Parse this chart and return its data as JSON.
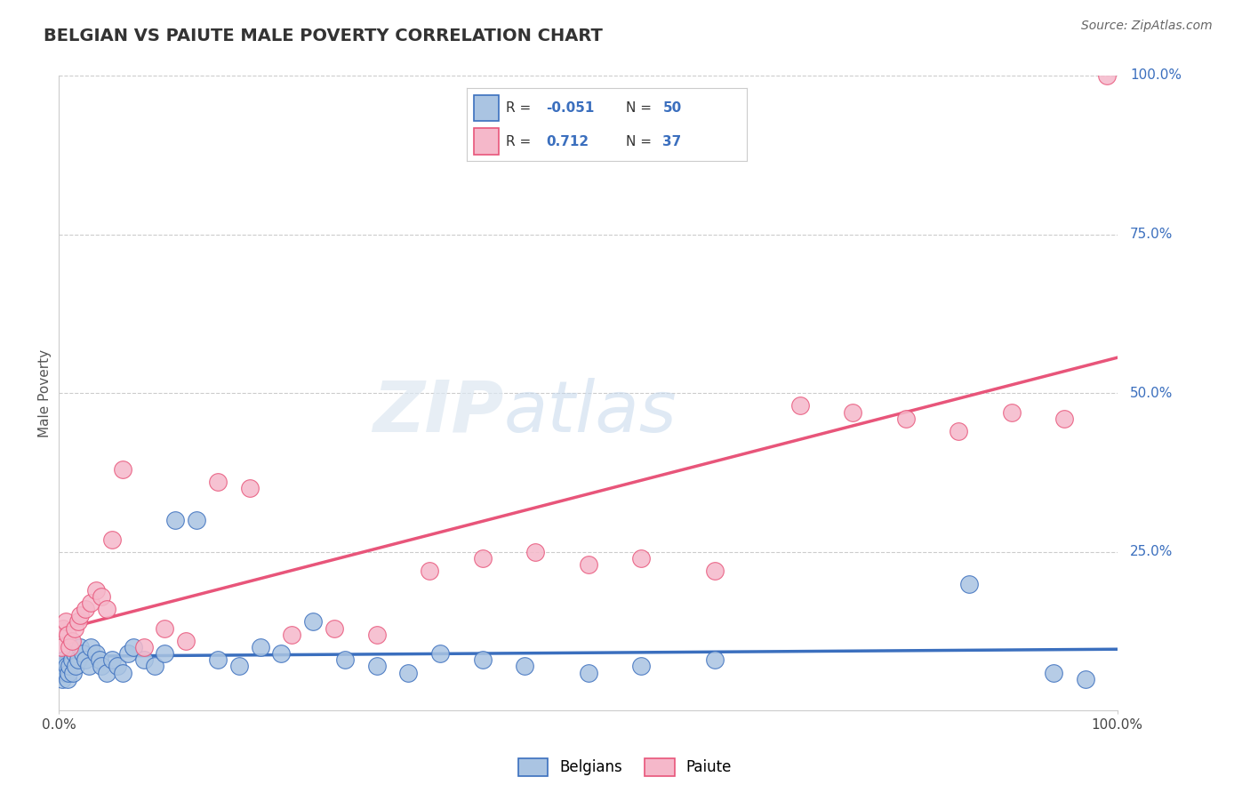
{
  "title": "BELGIAN VS PAIUTE MALE POVERTY CORRELATION CHART",
  "source": "Source: ZipAtlas.com",
  "ylabel": "Male Poverty",
  "legend_belgians": "Belgians",
  "legend_paiute": "Paiute",
  "belgian_R": -0.051,
  "belgian_N": 50,
  "paiute_R": 0.712,
  "paiute_N": 37,
  "belgian_color": "#aac4e2",
  "paiute_color": "#f5b8ca",
  "belgian_line_color": "#3b6fbe",
  "paiute_line_color": "#e8557a",
  "xlim": [
    0.0,
    1.0
  ],
  "ylim": [
    0.0,
    1.0
  ],
  "background_color": "#ffffff",
  "grid_color": "#cccccc",
  "belgians_x": [
    0.002,
    0.003,
    0.004,
    0.005,
    0.006,
    0.007,
    0.008,
    0.009,
    0.01,
    0.012,
    0.013,
    0.015,
    0.016,
    0.018,
    0.02,
    0.022,
    0.025,
    0.028,
    0.03,
    0.035,
    0.038,
    0.04,
    0.045,
    0.05,
    0.055,
    0.06,
    0.065,
    0.07,
    0.08,
    0.09,
    0.1,
    0.11,
    0.13,
    0.15,
    0.17,
    0.19,
    0.21,
    0.24,
    0.27,
    0.3,
    0.33,
    0.36,
    0.4,
    0.44,
    0.5,
    0.55,
    0.62,
    0.86,
    0.94,
    0.97
  ],
  "belgians_y": [
    0.06,
    0.05,
    0.07,
    0.08,
    0.06,
    0.07,
    0.05,
    0.06,
    0.07,
    0.08,
    0.06,
    0.09,
    0.07,
    0.08,
    0.1,
    0.09,
    0.08,
    0.07,
    0.1,
    0.09,
    0.08,
    0.07,
    0.06,
    0.08,
    0.07,
    0.06,
    0.09,
    0.1,
    0.08,
    0.07,
    0.09,
    0.3,
    0.3,
    0.08,
    0.07,
    0.1,
    0.09,
    0.14,
    0.08,
    0.07,
    0.06,
    0.09,
    0.08,
    0.07,
    0.06,
    0.07,
    0.08,
    0.2,
    0.06,
    0.05
  ],
  "paiutes_x": [
    0.002,
    0.004,
    0.006,
    0.008,
    0.01,
    0.012,
    0.015,
    0.018,
    0.02,
    0.025,
    0.03,
    0.035,
    0.04,
    0.045,
    0.05,
    0.06,
    0.08,
    0.1,
    0.12,
    0.15,
    0.18,
    0.22,
    0.26,
    0.3,
    0.35,
    0.4,
    0.45,
    0.5,
    0.55,
    0.62,
    0.7,
    0.75,
    0.8,
    0.85,
    0.9,
    0.95,
    0.99
  ],
  "paiutes_y": [
    0.1,
    0.13,
    0.14,
    0.12,
    0.1,
    0.11,
    0.13,
    0.14,
    0.15,
    0.16,
    0.17,
    0.19,
    0.18,
    0.16,
    0.27,
    0.38,
    0.1,
    0.13,
    0.11,
    0.36,
    0.35,
    0.12,
    0.13,
    0.12,
    0.22,
    0.24,
    0.25,
    0.23,
    0.24,
    0.22,
    0.48,
    0.47,
    0.46,
    0.44,
    0.47,
    0.46,
    1.0
  ]
}
